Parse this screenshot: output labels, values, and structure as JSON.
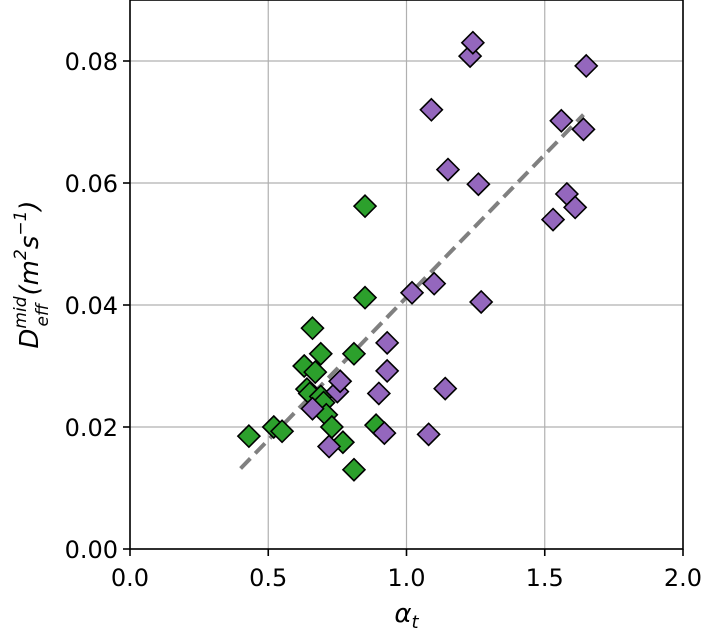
{
  "chart_data": {
    "type": "scatter",
    "title": "",
    "xlabel_main": "α",
    "xlabel_sub": "t",
    "ylabel_main": "D",
    "ylabel_sub": "eff",
    "ylabel_sup": "mid",
    "ylabel_units_open": " (m",
    "ylabel_units_sup1": "2",
    "ylabel_units_mid": "s",
    "ylabel_units_sup2": "−1",
    "ylabel_units_close": ")",
    "xlim": [
      0.0,
      2.0
    ],
    "ylim": [
      0.0,
      0.09
    ],
    "xticks": [
      0.0,
      0.5,
      1.0,
      1.5,
      2.0
    ],
    "xtick_labels": [
      "0.0",
      "0.5",
      "1.0",
      "1.5",
      "2.0"
    ],
    "yticks": [
      0.0,
      0.02,
      0.04,
      0.06,
      0.08
    ],
    "ytick_labels": [
      "0.00",
      "0.02",
      "0.04",
      "0.06",
      "0.08"
    ],
    "grid": true,
    "series": [
      {
        "color": "#2ca02c",
        "marker": "diamond",
        "points": [
          [
            0.43,
            0.0185
          ],
          [
            0.52,
            0.02
          ],
          [
            0.55,
            0.0193
          ],
          [
            0.63,
            0.03
          ],
          [
            0.64,
            0.0262
          ],
          [
            0.65,
            0.0255
          ],
          [
            0.66,
            0.0362
          ],
          [
            0.67,
            0.029
          ],
          [
            0.69,
            0.032
          ],
          [
            0.69,
            0.025
          ],
          [
            0.7,
            0.024
          ],
          [
            0.71,
            0.022
          ],
          [
            0.73,
            0.02
          ],
          [
            0.77,
            0.0175
          ],
          [
            0.81,
            0.013
          ],
          [
            0.81,
            0.032
          ],
          [
            0.85,
            0.0412
          ],
          [
            0.85,
            0.0562
          ],
          [
            0.89,
            0.0203
          ]
        ]
      },
      {
        "color": "#9467bd",
        "marker": "diamond",
        "points": [
          [
            0.66,
            0.023
          ],
          [
            0.72,
            0.0168
          ],
          [
            0.75,
            0.0258
          ],
          [
            0.76,
            0.0275
          ],
          [
            0.9,
            0.0255
          ],
          [
            0.92,
            0.019
          ],
          [
            0.93,
            0.0338
          ],
          [
            0.93,
            0.0292
          ],
          [
            1.02,
            0.042
          ],
          [
            1.08,
            0.0188
          ],
          [
            1.09,
            0.072
          ],
          [
            1.1,
            0.0435
          ],
          [
            1.14,
            0.0263
          ],
          [
            1.15,
            0.0622
          ],
          [
            1.23,
            0.0808
          ],
          [
            1.24,
            0.083
          ],
          [
            1.26,
            0.0598
          ],
          [
            1.27,
            0.0405
          ],
          [
            1.53,
            0.054
          ],
          [
            1.56,
            0.0702
          ],
          [
            1.58,
            0.0582
          ],
          [
            1.61,
            0.056
          ],
          [
            1.64,
            0.0688
          ],
          [
            1.65,
            0.0792
          ]
        ]
      }
    ],
    "fit_line": {
      "color": "#808080",
      "style": "dashed",
      "x": [
        0.4,
        1.64
      ],
      "y": [
        0.0132,
        0.0712
      ]
    }
  }
}
